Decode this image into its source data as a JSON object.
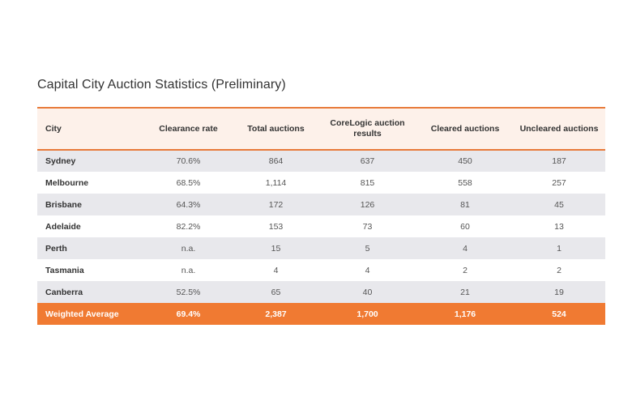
{
  "title": "Capital City Auction Statistics (Preliminary)",
  "table": {
    "headers": [
      "City",
      "Clearance rate",
      "Total auctions",
      "CoreLogic auction results",
      "Cleared auctions",
      "Uncleared auctions"
    ],
    "rows": [
      [
        "Sydney",
        "70.6%",
        "864",
        "637",
        "450",
        "187"
      ],
      [
        "Melbourne",
        "68.5%",
        "1,114",
        "815",
        "558",
        "257"
      ],
      [
        "Brisbane",
        "64.3%",
        "172",
        "126",
        "81",
        "45"
      ],
      [
        "Adelaide",
        "82.2%",
        "153",
        "73",
        "60",
        "13"
      ],
      [
        "Perth",
        "n.a.",
        "15",
        "5",
        "4",
        "1"
      ],
      [
        "Tasmania",
        "n.a.",
        "4",
        "4",
        "2",
        "2"
      ],
      [
        "Canberra",
        "52.5%",
        "65",
        "40",
        "21",
        "19"
      ]
    ],
    "total": [
      "Weighted Average",
      "69.4%",
      "2,387",
      "1,700",
      "1,176",
      "524"
    ]
  },
  "colors": {
    "accent": "#f07a32",
    "header_bg": "#fdf1ea",
    "stripe": "#e8e8ec"
  }
}
